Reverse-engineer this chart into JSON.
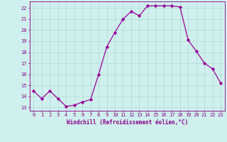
{
  "x": [
    0,
    1,
    2,
    3,
    4,
    5,
    6,
    7,
    8,
    9,
    10,
    11,
    12,
    13,
    14,
    15,
    16,
    17,
    18,
    19,
    20,
    21,
    22,
    23
  ],
  "y": [
    14.5,
    13.8,
    14.5,
    13.8,
    13.1,
    13.2,
    13.5,
    13.7,
    16.0,
    18.5,
    19.8,
    21.0,
    21.7,
    21.3,
    22.2,
    22.2,
    22.2,
    22.2,
    22.1,
    19.1,
    18.1,
    17.0,
    16.5,
    15.2
  ],
  "line_color": "#990099",
  "marker": "D",
  "marker_size": 2.2,
  "bg_color": "#cff0ee",
  "grid_color": "#b0d8d4",
  "xlabel": "Windchill (Refroidissement éolien,°C)",
  "ylabel_ticks": [
    13,
    14,
    15,
    16,
    17,
    18,
    19,
    20,
    21,
    22
  ],
  "ylim": [
    12.7,
    22.6
  ],
  "xlim": [
    -0.5,
    23.5
  ],
  "xticks": [
    0,
    1,
    2,
    3,
    4,
    5,
    6,
    7,
    8,
    9,
    10,
    11,
    12,
    13,
    14,
    15,
    16,
    17,
    18,
    19,
    20,
    21,
    22,
    23
  ],
  "label_color": "#880088",
  "tick_fontsize": 5.0,
  "xlabel_fontsize": 5.5
}
